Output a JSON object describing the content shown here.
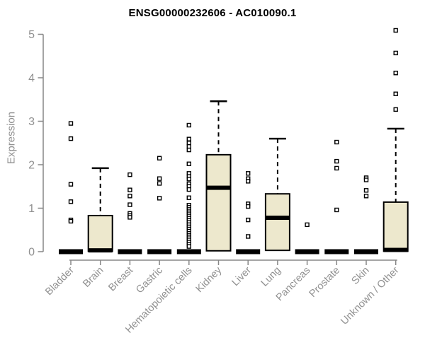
{
  "chart_data": {
    "type": "boxplot",
    "title": "ENSG00000232606 - AC010090.1",
    "xlabel": "",
    "ylabel": "Expression",
    "ylim": [
      0,
      5
    ],
    "yticks": [
      0,
      1,
      2,
      3,
      4,
      5
    ],
    "grid": false,
    "legend": null,
    "box_fill": "#EDE8CD",
    "box_border": "#000000",
    "axis_color": "#878787",
    "text_color": "#909090",
    "outlier_fill": "#ffffff",
    "categories": [
      "Bladder",
      "Brain",
      "Breast",
      "Gastric",
      "Hematopoietic cells",
      "Kidney",
      "Liver",
      "Lung",
      "Pancreas",
      "Prostate",
      "Skin",
      "Unknown / Other"
    ],
    "series": [
      {
        "label": "Bladder",
        "collapsed": true,
        "median": 0,
        "q1": 0,
        "q3": 0,
        "whisker_low": 0,
        "whisker_high": 0,
        "outliers": [
          2.95,
          2.6,
          1.55,
          1.15,
          0.73,
          0.7
        ]
      },
      {
        "label": "Brain",
        "collapsed": false,
        "median": 0.03,
        "q1": 0.01,
        "q3": 0.83,
        "whisker_low": 0,
        "whisker_high": 1.92,
        "outliers": []
      },
      {
        "label": "Breast",
        "collapsed": true,
        "median": 0,
        "q1": 0,
        "q3": 0,
        "whisker_low": 0,
        "whisker_high": 0,
        "outliers": [
          1.77,
          1.42,
          1.28,
          1.08,
          0.88,
          0.83,
          0.79
        ]
      },
      {
        "label": "Gastric",
        "collapsed": true,
        "median": 0,
        "q1": 0,
        "q3": 0,
        "whisker_low": 0,
        "whisker_high": 0,
        "outliers": [
          2.15,
          1.68,
          1.57,
          1.23
        ]
      },
      {
        "label": "Hematopoietic cells",
        "collapsed": true,
        "median": 0,
        "q1": 0,
        "q3": 0,
        "whisker_low": 0,
        "whisker_high": 0,
        "outliers": [
          2.91,
          2.59,
          2.5,
          2.42,
          2.34,
          2.02,
          1.8,
          1.73,
          1.67,
          1.56,
          1.5,
          1.43,
          1.24,
          1.07,
          1.02,
          0.97,
          0.92,
          0.87,
          0.82,
          0.77,
          0.72,
          0.67,
          0.62,
          0.57,
          0.52,
          0.47,
          0.42,
          0.37,
          0.32,
          0.27,
          0.22,
          0.17,
          0.12
        ]
      },
      {
        "label": "Kidney",
        "collapsed": false,
        "median": 1.47,
        "q1": 0.02,
        "q3": 2.23,
        "whisker_low": 0,
        "whisker_high": 3.46,
        "outliers": []
      },
      {
        "label": "Liver",
        "collapsed": true,
        "median": 0,
        "q1": 0,
        "q3": 0,
        "whisker_low": 0,
        "whisker_high": 0,
        "outliers": [
          1.8,
          1.68,
          1.62,
          1.1,
          1.04,
          0.73,
          0.35
        ]
      },
      {
        "label": "Lung",
        "collapsed": false,
        "median": 0.78,
        "q1": 0.03,
        "q3": 1.33,
        "whisker_low": 0,
        "whisker_high": 2.6,
        "outliers": []
      },
      {
        "label": "Pancreas",
        "collapsed": true,
        "median": 0,
        "q1": 0,
        "q3": 0,
        "whisker_low": 0,
        "whisker_high": 0,
        "outliers": [
          0.62
        ]
      },
      {
        "label": "Prostate",
        "collapsed": true,
        "median": 0,
        "q1": 0,
        "q3": 0,
        "whisker_low": 0,
        "whisker_high": 0,
        "outliers": [
          2.52,
          2.08,
          1.92,
          0.96
        ]
      },
      {
        "label": "Skin",
        "collapsed": true,
        "median": 0,
        "q1": 0,
        "q3": 0,
        "whisker_low": 0,
        "whisker_high": 0,
        "outliers": [
          1.7,
          1.65,
          1.41,
          1.28
        ]
      },
      {
        "label": "Unknown / Other",
        "collapsed": false,
        "median": 0.04,
        "q1": 0.01,
        "q3": 1.14,
        "whisker_low": 0,
        "whisker_high": 2.83,
        "outliers": [
          5.09,
          4.57,
          4.11,
          3.63,
          3.27
        ]
      }
    ]
  }
}
